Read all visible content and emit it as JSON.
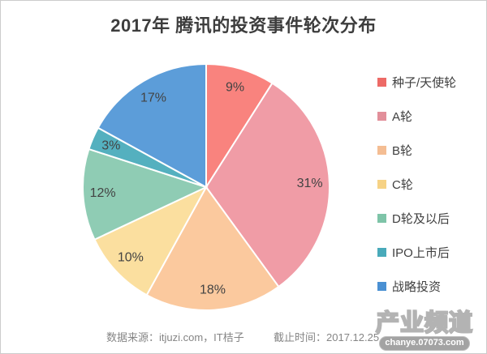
{
  "title": "2017年 腾讯的投资事件轮次分布",
  "chart_data": {
    "type": "pie",
    "title": "2017年 腾讯的投资事件轮次分布",
    "unit": "%",
    "start_angle": "12-oclock",
    "direction": "clockwise",
    "legend_position": "right",
    "series": [
      {
        "label": "种子/天使轮",
        "value": 9,
        "slice_color": "#F9837E",
        "legend_color": "#ED6A66"
      },
      {
        "label": "A轮",
        "value": 31,
        "slice_color": "#F09CA6",
        "legend_color": "#E28F9A"
      },
      {
        "label": "B轮",
        "value": 18,
        "slice_color": "#FBC99E",
        "legend_color": "#F4BD93"
      },
      {
        "label": "C轮",
        "value": 10,
        "slice_color": "#FBDF9F",
        "legend_color": "#F6D285"
      },
      {
        "label": "D轮及以后",
        "value": 12,
        "slice_color": "#8FCCB4",
        "legend_color": "#7EC4A8"
      },
      {
        "label": "IPO上市后",
        "value": 3,
        "slice_color": "#54B0BF",
        "legend_color": "#49AABA"
      },
      {
        "label": "战略投资",
        "value": 17,
        "slice_color": "#5C9DD9",
        "legend_color": "#4A90D3"
      }
    ]
  },
  "footer": {
    "source": "数据来源：itjuzi.com，IT桔子",
    "cutoff": "截止时间：2017.12.25"
  },
  "watermark": {
    "name": "产业频道",
    "url": "chanye.07073.com"
  }
}
